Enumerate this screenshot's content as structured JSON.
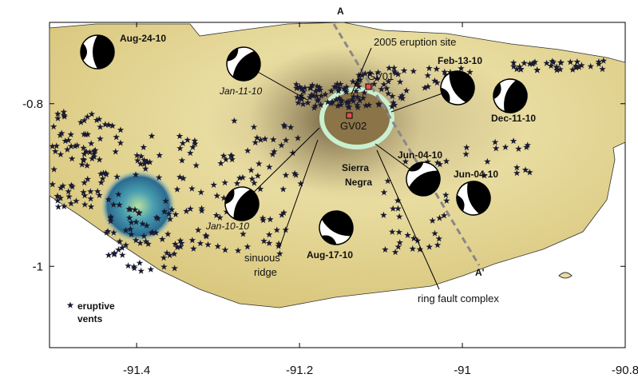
{
  "map": {
    "xlim": [
      -91.507,
      -90.8
    ],
    "ylim": [
      -1.1,
      -0.7
    ],
    "xticks": [
      -91.4,
      -91.2,
      -91,
      -90.8
    ],
    "yticks": [
      -0.8,
      -1
    ],
    "profile": {
      "start": "A",
      "end": "A'"
    },
    "sites": [
      "GV01",
      "GV02"
    ],
    "labels": {
      "eruption_site": "2005 eruption site",
      "volcano": [
        "Sierra",
        "Negra"
      ],
      "ridge": [
        "sinuous",
        "ridge"
      ],
      "ring_fault": "ring fault complex"
    },
    "mechanisms": [
      {
        "date": "Aug-24-10"
      },
      {
        "date": "Jan-11-10"
      },
      {
        "date": "Feb-13-10"
      },
      {
        "date": "Dec-11-10"
      },
      {
        "date": "Jun-04-10"
      },
      {
        "date": "Jun-04-10"
      },
      {
        "date": "Jan-10-10"
      },
      {
        "date": "Aug-17-10"
      }
    ],
    "legend": [
      "eruptive",
      "vents"
    ]
  }
}
